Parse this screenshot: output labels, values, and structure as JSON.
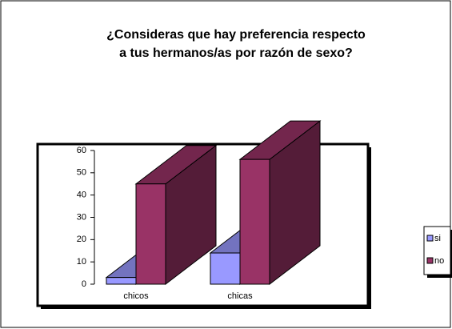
{
  "chart_data": {
    "type": "bar3d",
    "title": "¿Consideras que hay preferencia respecto\na tus hermanos/as por razón de sexo?",
    "categories": [
      "chicos",
      "chicas"
    ],
    "series": [
      {
        "name": "si",
        "color": "#9999ff",
        "values": [
          3,
          14
        ]
      },
      {
        "name": "no",
        "color": "#993366",
        "values": [
          45,
          56
        ]
      }
    ],
    "ylim": [
      0,
      60
    ],
    "yticks": [
      0,
      10,
      20,
      30,
      40,
      50,
      60
    ],
    "legend": "right"
  }
}
